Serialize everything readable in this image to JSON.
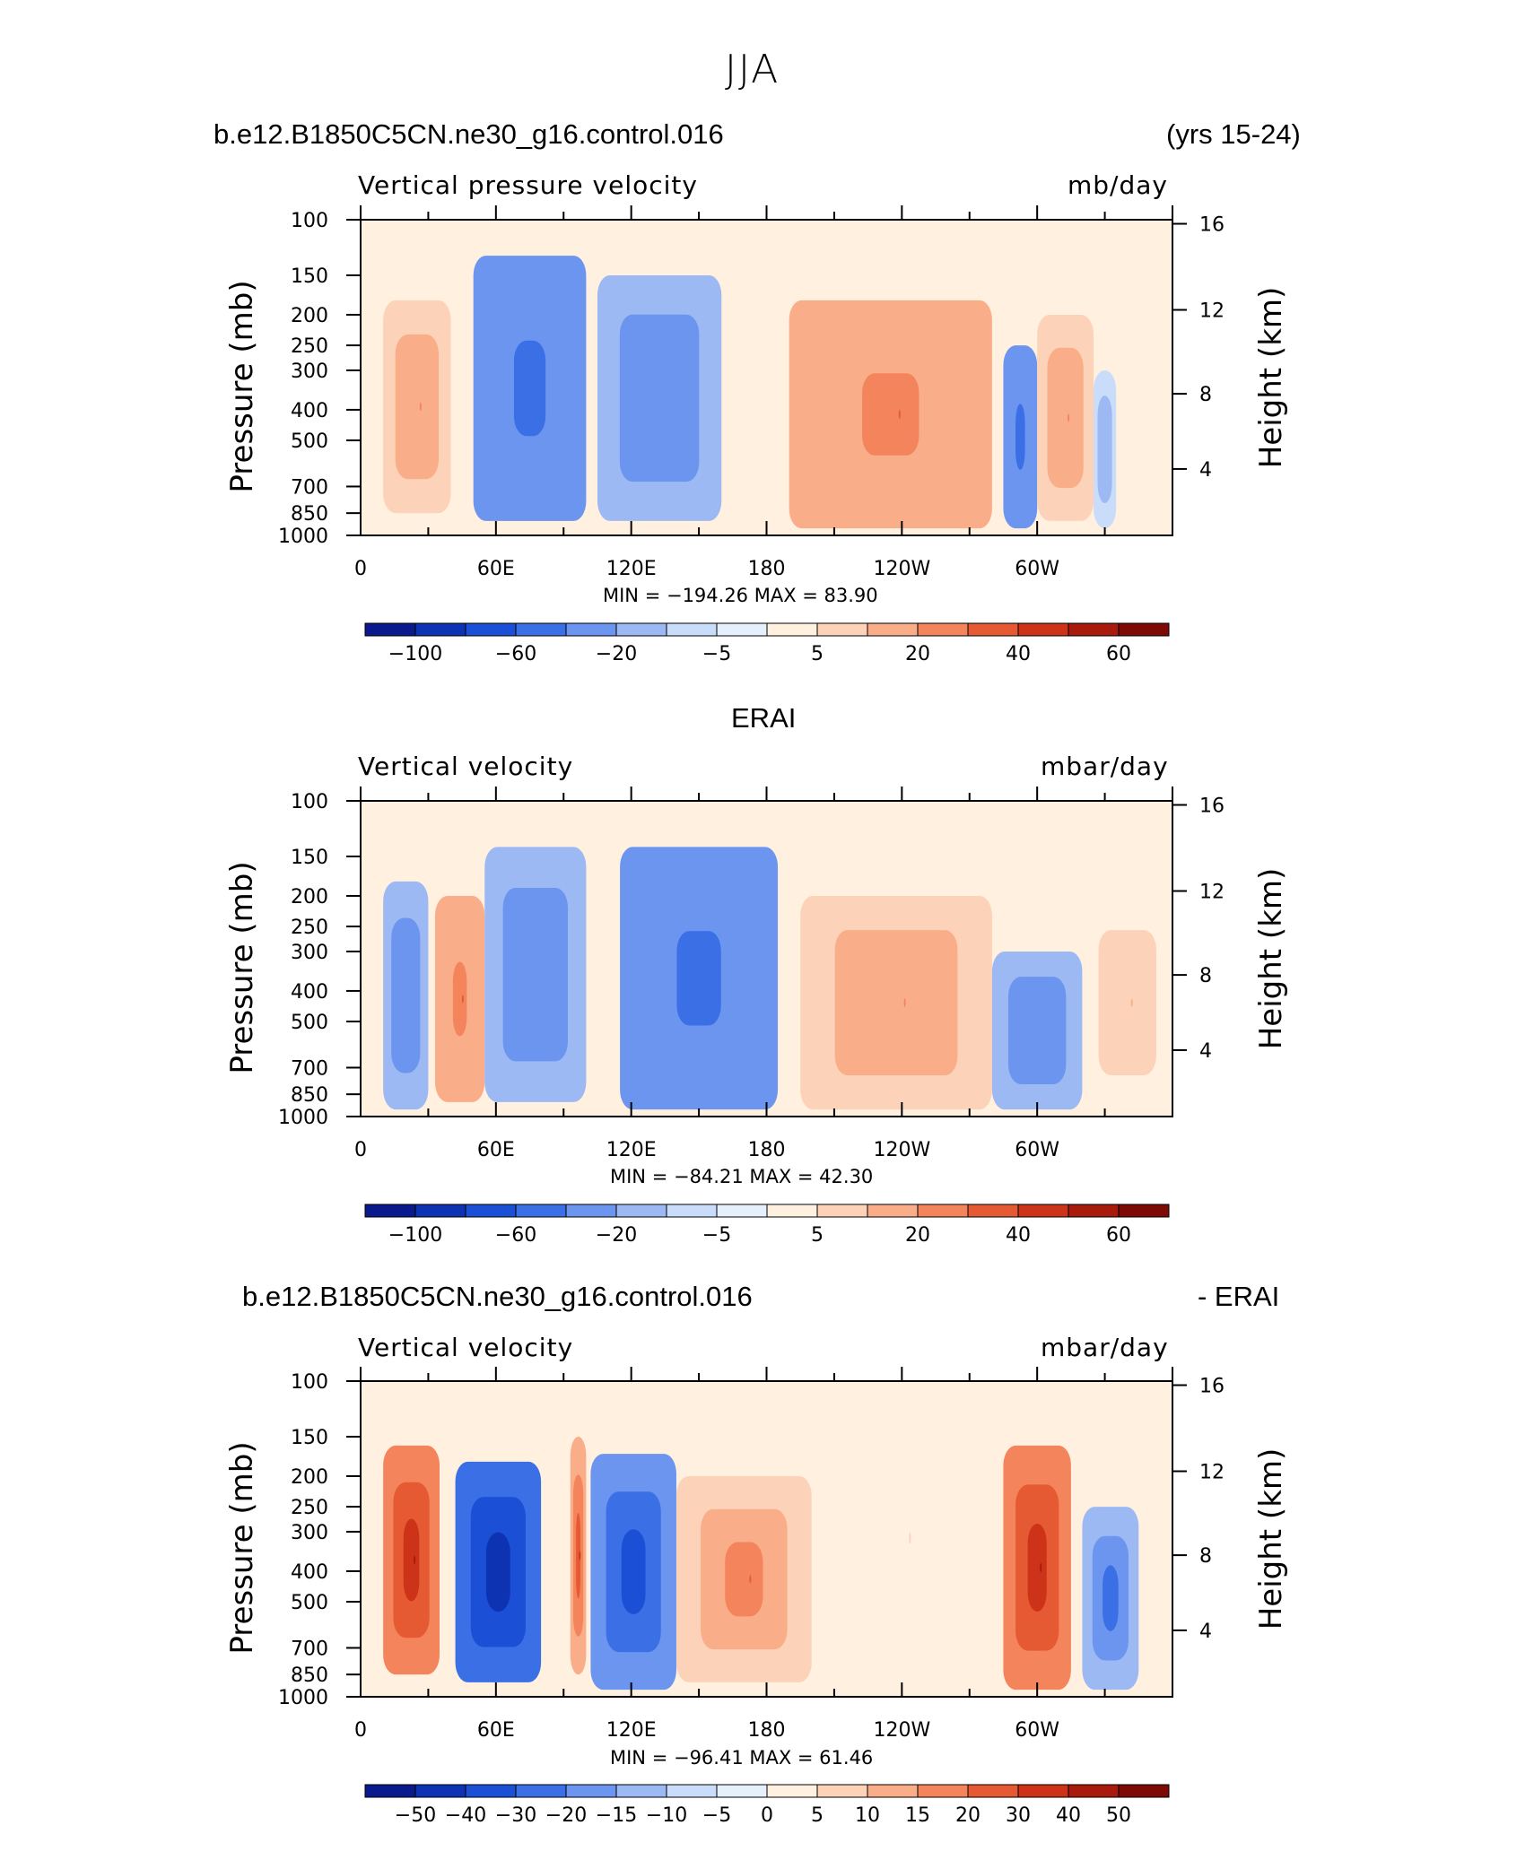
{
  "figure": {
    "title": "JJA",
    "colors": {
      "blue_to_red": [
        "#0a1a8c",
        "#0d33b3",
        "#1a4fd6",
        "#3a6fe6",
        "#6b95ee",
        "#9cb9f4",
        "#c9dcf9",
        "#e6f0fc",
        "#fff0df",
        "#fcd3b8",
        "#f9ad88",
        "#f3845c",
        "#e55a33",
        "#cc3318",
        "#a81a0c",
        "#7d0a05"
      ]
    }
  },
  "panels": [
    {
      "case_title": "b.e12.B1850C5CN.ne30_g16.control.016",
      "case_suffix": "(yrs 15-24)",
      "left_string": "Vertical pressure velocity",
      "right_string": "mb/day",
      "ylabel": "Pressure (mb)",
      "ylabel_right": "Height (km)",
      "minmax": "MIN = −194.26   MAX =   83.90",
      "colorbar_labels": [
        "−100",
        "−60",
        "−20",
        "−5",
        "5",
        "20",
        "40",
        "60"
      ]
    },
    {
      "case_title": "ERAI",
      "case_suffix": "",
      "left_string": "Vertical velocity",
      "right_string": "mbar/day",
      "ylabel": "Pressure (mb)",
      "ylabel_right": "Height (km)",
      "minmax": "MIN = −84.21   MAX =   42.30",
      "colorbar_labels": [
        "−100",
        "−60",
        "−20",
        "−5",
        "5",
        "20",
        "40",
        "60"
      ]
    },
    {
      "case_title": "b.e12.B1850C5CN.ne30_g16.control.016",
      "case_suffix": "- ERAI",
      "left_string": "Vertical velocity",
      "right_string": "mbar/day",
      "ylabel": "Pressure (mb)",
      "ylabel_right": "Height (km)",
      "minmax": "MIN = −96.41   MAX =   61.46",
      "colorbar_labels": [
        "−50",
        "−40",
        "−30",
        "−20",
        "−15",
        "−10",
        "−5",
        "0",
        "5",
        "10",
        "15",
        "20",
        "30",
        "40",
        "50"
      ]
    }
  ],
  "chart_data": [
    {
      "type": "heatmap",
      "title": "Vertical pressure velocity",
      "units": "mb/day",
      "x_ticks": [
        "0",
        "60E",
        "120E",
        "180",
        "120W",
        "60W"
      ],
      "x_range": [
        0,
        360
      ],
      "y_ticks_pressure": [
        "100",
        "150",
        "200",
        "250",
        "300",
        "400",
        "500",
        "700",
        "850",
        "1000"
      ],
      "y_ticks_height": [
        "16",
        "12",
        "8",
        "4"
      ],
      "y_range_mb": [
        1000,
        100
      ],
      "min": -194.26,
      "max": 83.9,
      "levels": [
        -120,
        -100,
        -80,
        -60,
        -40,
        -20,
        -10,
        -5,
        0,
        5,
        10,
        20,
        30,
        40,
        50,
        60
      ],
      "features": [
        {
          "lon": 10,
          "lon_end": 40,
          "p_top": 180,
          "p_bot": 850,
          "value": 20
        },
        {
          "lon": 50,
          "lon_end": 100,
          "p_top": 130,
          "p_bot": 900,
          "value": -60
        },
        {
          "lon": 105,
          "lon_end": 160,
          "p_top": 150,
          "p_bot": 900,
          "value": -40
        },
        {
          "lon": 190,
          "lon_end": 280,
          "p_top": 180,
          "p_bot": 950,
          "value": 30
        },
        {
          "lon": 285,
          "lon_end": 300,
          "p_top": 250,
          "p_bot": 950,
          "value": -60
        },
        {
          "lon": 300,
          "lon_end": 325,
          "p_top": 200,
          "p_bot": 900,
          "value": 20
        },
        {
          "lon": 325,
          "lon_end": 335,
          "p_top": 300,
          "p_bot": 950,
          "value": -20
        }
      ]
    },
    {
      "type": "heatmap",
      "title": "Vertical velocity",
      "units": "mbar/day",
      "x_ticks": [
        "0",
        "60E",
        "120E",
        "180",
        "120W",
        "60W"
      ],
      "x_range": [
        0,
        360
      ],
      "y_ticks_pressure": [
        "100",
        "150",
        "200",
        "250",
        "300",
        "400",
        "500",
        "700",
        "850",
        "1000"
      ],
      "y_ticks_height": [
        "16",
        "12",
        "8",
        "4"
      ],
      "y_range_mb": [
        1000,
        100
      ],
      "min": -84.21,
      "max": 42.3,
      "levels": [
        -120,
        -100,
        -80,
        -60,
        -40,
        -20,
        -10,
        -5,
        0,
        5,
        10,
        20,
        30,
        40,
        50,
        60
      ],
      "features": [
        {
          "lon": 10,
          "lon_end": 30,
          "p_top": 180,
          "p_bot": 950,
          "value": -40
        },
        {
          "lon": 33,
          "lon_end": 55,
          "p_top": 200,
          "p_bot": 900,
          "value": 30
        },
        {
          "lon": 55,
          "lon_end": 100,
          "p_top": 140,
          "p_bot": 900,
          "value": -40
        },
        {
          "lon": 115,
          "lon_end": 185,
          "p_top": 140,
          "p_bot": 950,
          "value": -60
        },
        {
          "lon": 195,
          "lon_end": 280,
          "p_top": 200,
          "p_bot": 950,
          "value": 20
        },
        {
          "lon": 280,
          "lon_end": 320,
          "p_top": 300,
          "p_bot": 950,
          "value": -40
        },
        {
          "lon": 320,
          "lon_end": 360,
          "p_top": 200,
          "p_bot": 950,
          "value": 10
        }
      ]
    },
    {
      "type": "heatmap",
      "title": "Vertical velocity",
      "units": "mbar/day",
      "x_ticks": [
        "0",
        "60E",
        "120E",
        "180",
        "120W",
        "60W"
      ],
      "x_range": [
        0,
        360
      ],
      "y_ticks_pressure": [
        "100",
        "150",
        "200",
        "250",
        "300",
        "400",
        "500",
        "700",
        "850",
        "1000"
      ],
      "y_ticks_height": [
        "16",
        "12",
        "8",
        "4"
      ],
      "y_range_mb": [
        1000,
        100
      ],
      "min": -96.41,
      "max": 61.46,
      "levels": [
        -60,
        -50,
        -40,
        -30,
        -20,
        -15,
        -10,
        -5,
        0,
        5,
        10,
        15,
        20,
        30,
        40,
        50
      ],
      "features": [
        {
          "lon": 10,
          "lon_end": 35,
          "p_top": 160,
          "p_bot": 850,
          "value": 40
        },
        {
          "lon": 42,
          "lon_end": 80,
          "p_top": 180,
          "p_bot": 900,
          "value": -50
        },
        {
          "lon": 93,
          "lon_end": 100,
          "p_top": 150,
          "p_bot": 850,
          "value": 30
        },
        {
          "lon": 102,
          "lon_end": 140,
          "p_top": 170,
          "p_bot": 950,
          "value": -40
        },
        {
          "lon": 140,
          "lon_end": 200,
          "p_top": 200,
          "p_bot": 900,
          "value": 20
        },
        {
          "lon": 200,
          "lon_end": 280,
          "p_top": 110,
          "p_bot": 900,
          "value": 5
        },
        {
          "lon": 285,
          "lon_end": 315,
          "p_top": 160,
          "p_bot": 950,
          "value": 40
        },
        {
          "lon": 320,
          "lon_end": 345,
          "p_top": 250,
          "p_bot": 950,
          "value": -30
        }
      ]
    }
  ]
}
